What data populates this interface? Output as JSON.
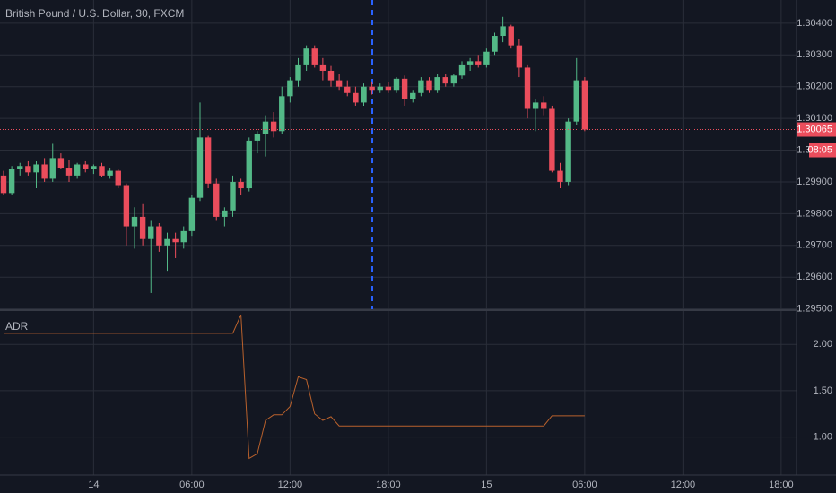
{
  "chart_data": [
    {
      "type": "candlestick",
      "title": "British Pound / U.S. Dollar, 30, FXCM",
      "categories": [
        null,
        null,
        null,
        null,
        null,
        null,
        null,
        null,
        null,
        null,
        null,
        "14",
        null,
        null,
        null,
        null,
        null,
        null,
        null,
        null,
        null,
        null,
        null,
        "06:00",
        null,
        null,
        null,
        null,
        null,
        null,
        null,
        null,
        null,
        null,
        null,
        "12:00",
        null,
        null,
        null,
        null,
        null,
        null,
        null,
        null,
        null,
        null,
        null,
        "18:00",
        null,
        null,
        null,
        null,
        null,
        null,
        null,
        null,
        null,
        null,
        null,
        "15",
        null,
        null,
        null,
        null,
        null,
        null,
        null,
        null,
        null,
        null,
        null,
        "06:00",
        null,
        null,
        null,
        null,
        null,
        null,
        null,
        null,
        null,
        null,
        null,
        "12:00",
        null,
        null,
        null,
        null,
        null,
        null,
        null,
        null,
        null,
        null,
        null,
        "18:00"
      ],
      "open": [
        1.2992,
        1.29865,
        1.2994,
        1.2995,
        1.2993,
        1.29955,
        1.2991,
        1.29975,
        1.29945,
        1.2992,
        1.29955,
        1.2994,
        1.2995,
        1.2992,
        1.29935,
        1.2989,
        1.2976,
        1.2979,
        1.2972,
        1.2976,
        1.297,
        1.2972,
        1.2971,
        1.29745,
        1.2985,
        1.3004,
        1.29895,
        1.2979,
        1.2981,
        1.299,
        1.2988,
        1.3003,
        1.3005,
        1.3009,
        1.3006,
        1.3017,
        1.3022,
        1.3027,
        1.3032,
        1.3027,
        1.3025,
        1.3022,
        1.302,
        1.3018,
        1.3015,
        1.302,
        1.3019,
        1.302,
        1.3019,
        1.30225,
        1.3016,
        1.3018,
        1.3022,
        1.3019,
        1.3023,
        1.3021,
        1.30235,
        1.3027,
        1.3028,
        1.3027,
        1.3031,
        1.3036,
        1.3039,
        1.3033,
        1.3026,
        1.3013,
        1.3015,
        1.3013,
        1.29935,
        1.299,
        1.3009,
        1.3022,
        null,
        null,
        null,
        null,
        null,
        null,
        null,
        null,
        null,
        null,
        null,
        null,
        null,
        null,
        null,
        null,
        null,
        null,
        null,
        null,
        null,
        null,
        null,
        null
      ],
      "high": [
        1.29935,
        1.2995,
        1.2996,
        1.29965,
        1.29965,
        1.29975,
        1.3002,
        1.2999,
        1.2997,
        1.2996,
        1.29965,
        1.29955,
        1.2996,
        1.29945,
        1.2994,
        1.29895,
        1.2982,
        1.2983,
        1.2978,
        1.2977,
        1.2974,
        1.2974,
        1.2976,
        1.2986,
        1.3015,
        1.30045,
        1.2991,
        1.2982,
        1.2992,
        1.2991,
        1.3004,
        1.3006,
        1.3011,
        1.3012,
        1.302,
        1.3023,
        1.3029,
        1.3033,
        1.3033,
        1.3029,
        1.30265,
        1.3024,
        1.3022,
        1.302,
        1.3021,
        1.30215,
        1.3021,
        1.30215,
        1.3023,
        1.30235,
        1.3019,
        1.3023,
        1.3023,
        1.3024,
        1.3024,
        1.3024,
        1.3028,
        1.3029,
        1.303,
        1.3032,
        1.3037,
        1.3042,
        1.30395,
        1.3035,
        1.3027,
        1.3016,
        1.3017,
        1.3014,
        1.2996,
        1.301,
        1.3029,
        1.3023,
        null,
        null,
        null,
        null,
        null,
        null,
        null,
        null,
        null,
        null,
        null,
        null,
        null,
        null,
        null,
        null,
        null,
        null,
        null,
        null,
        null,
        null,
        null,
        null
      ],
      "low": [
        1.2986,
        1.2986,
        1.2992,
        1.2992,
        1.2988,
        1.299,
        1.299,
        1.2994,
        1.299,
        1.2991,
        1.2993,
        1.29925,
        1.29915,
        1.2991,
        1.2988,
        1.297,
        1.2969,
        1.297,
        1.2955,
        1.2968,
        1.2962,
        1.2966,
        1.2969,
        1.2973,
        1.2984,
        1.2988,
        1.2978,
        1.2976,
        1.2979,
        1.2986,
        1.2987,
        1.2999,
        1.2998,
        1.3004,
        1.3005,
        1.3015,
        1.302,
        1.3025,
        1.3026,
        1.3022,
        1.302,
        1.3019,
        1.3017,
        1.3014,
        1.3014,
        1.30175,
        1.3018,
        1.3018,
        1.3018,
        1.3014,
        1.3015,
        1.3017,
        1.3018,
        1.3018,
        1.302,
        1.302,
        1.30225,
        1.3025,
        1.3026,
        1.3026,
        1.303,
        1.3034,
        1.3032,
        1.3023,
        1.301,
        1.3006,
        1.3011,
        1.2993,
        1.2988,
        1.2989,
        1.3008,
        1.3006,
        null,
        null,
        null,
        null,
        null,
        null,
        null,
        null,
        null,
        null,
        null,
        null,
        null,
        null,
        null,
        null,
        null,
        null,
        null,
        null,
        null,
        null,
        null,
        null
      ],
      "close": [
        1.29865,
        1.2994,
        1.2995,
        1.2993,
        1.29955,
        1.2991,
        1.29975,
        1.29945,
        1.2992,
        1.29955,
        1.2994,
        1.2995,
        1.2992,
        1.29935,
        1.2989,
        1.2976,
        1.2979,
        1.2972,
        1.2976,
        1.297,
        1.2972,
        1.2971,
        1.29745,
        1.2985,
        1.3004,
        1.29895,
        1.2979,
        1.2981,
        1.299,
        1.2988,
        1.3003,
        1.3005,
        1.3009,
        1.3006,
        1.3017,
        1.3022,
        1.3027,
        1.3032,
        1.3027,
        1.3025,
        1.3022,
        1.302,
        1.3018,
        1.3015,
        1.302,
        1.3019,
        1.302,
        1.3019,
        1.30225,
        1.3016,
        1.3018,
        1.3022,
        1.3019,
        1.3023,
        1.3021,
        1.30235,
        1.3027,
        1.3028,
        1.3027,
        1.3031,
        1.3036,
        1.3039,
        1.3033,
        1.3026,
        1.3013,
        1.3015,
        1.3013,
        1.29935,
        1.299,
        1.3009,
        1.3022,
        1.30065,
        null,
        null,
        null,
        null,
        null,
        null,
        null,
        null,
        null,
        null,
        null,
        null,
        null,
        null,
        null,
        null,
        null,
        null,
        null,
        null,
        null,
        null,
        null,
        null
      ],
      "up_color": "#53b987",
      "down_color": "#eb4d5c",
      "ylim": [
        1.29499,
        1.30473
      ],
      "yticks": [
        {
          "value": 1.304,
          "label": "1.30400"
        },
        {
          "value": 1.303,
          "label": "1.30300"
        },
        {
          "value": 1.302,
          "label": "1.30200"
        },
        {
          "value": 1.301,
          "label": "1.30100"
        },
        {
          "value": 1.3,
          "label": "1.30000"
        },
        {
          "value": 1.299,
          "label": "1.29900"
        },
        {
          "value": 1.298,
          "label": "1.29800"
        },
        {
          "value": 1.297,
          "label": "1.29700"
        },
        {
          "value": 1.296,
          "label": "1.29600"
        },
        {
          "value": 1.295,
          "label": "1.29500"
        }
      ],
      "last_price": {
        "value": 1.30065,
        "label": "1.30065"
      },
      "countdown": "08:05",
      "grid": true
    },
    {
      "type": "line",
      "title": "ADR",
      "color": "#b9612c",
      "values": [
        2.12,
        2.12,
        2.12,
        2.12,
        2.12,
        2.12,
        2.12,
        2.12,
        2.12,
        2.12,
        2.12,
        2.12,
        2.12,
        2.12,
        2.12,
        2.12,
        2.12,
        2.12,
        2.12,
        2.12,
        2.12,
        2.12,
        2.12,
        2.12,
        2.12,
        2.12,
        2.12,
        2.12,
        2.12,
        2.32,
        0.77,
        0.82,
        1.18,
        1.24,
        1.24,
        1.33,
        1.65,
        1.62,
        1.25,
        1.18,
        1.22,
        1.12,
        1.12,
        1.12,
        1.12,
        1.12,
        1.12,
        1.12,
        1.12,
        1.12,
        1.12,
        1.12,
        1.12,
        1.12,
        1.12,
        1.12,
        1.12,
        1.12,
        1.12,
        1.12,
        1.12,
        1.12,
        1.12,
        1.12,
        1.12,
        1.12,
        1.12,
        1.23,
        1.23,
        1.23,
        1.23,
        1.23,
        null,
        null,
        null,
        null,
        null,
        null,
        null,
        null,
        null,
        null,
        null,
        null,
        null,
        null,
        null,
        null,
        null,
        null,
        null,
        null,
        null,
        null,
        null,
        null
      ],
      "ylim": [
        0.59,
        2.36
      ],
      "yticks": [
        {
          "value": 1,
          "label": "1.00"
        },
        {
          "value": 1.5,
          "label": "1.50"
        },
        {
          "value": 2,
          "label": "2.00"
        }
      ],
      "grid": true
    }
  ]
}
